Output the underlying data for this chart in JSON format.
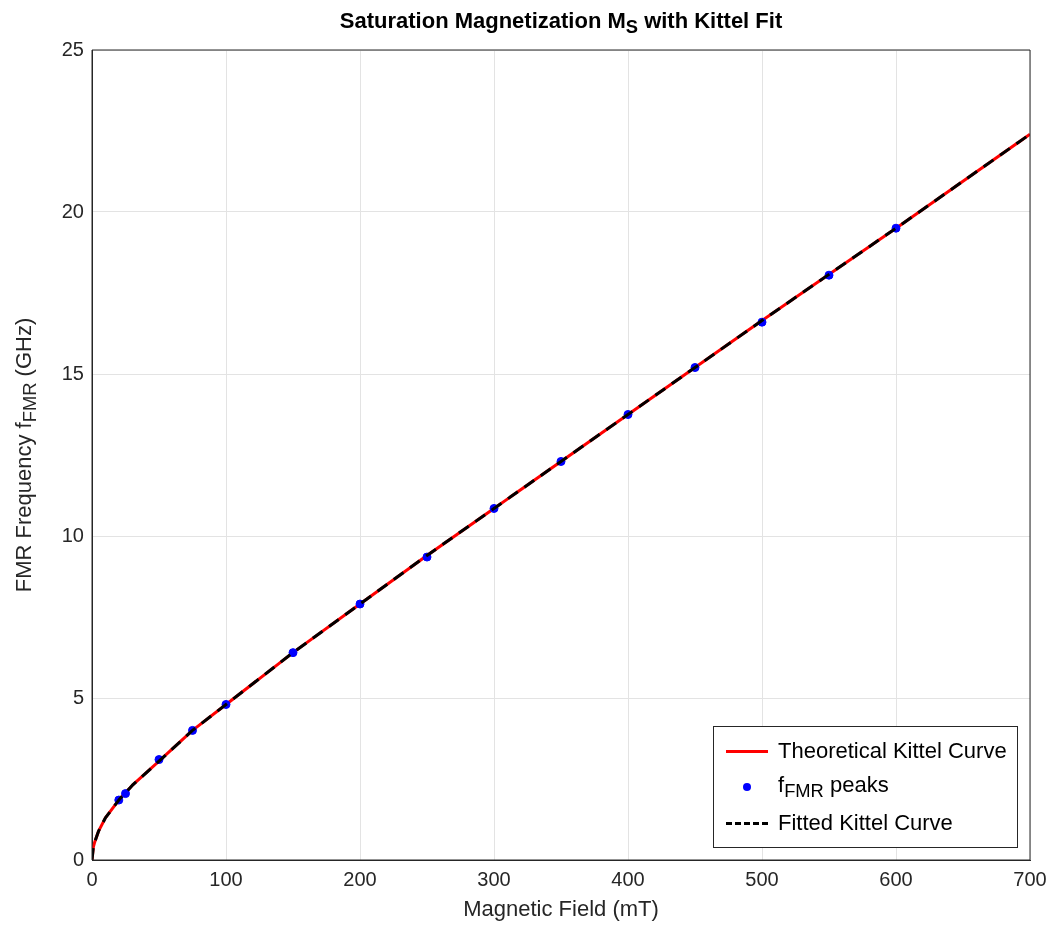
{
  "chart_data": {
    "type": "line",
    "title": "Saturation Magnetization M$_{S}$ with Kittel Fit",
    "xlabel": "Magnetic Field (mT)",
    "ylabel": "FMR Frequency f$_{FMR}$ (GHz)",
    "xlim": [
      0,
      700
    ],
    "xticks": [
      0,
      100,
      200,
      300,
      400,
      500,
      600,
      700
    ],
    "ylim": [
      0,
      25
    ],
    "yticks": [
      0,
      5,
      10,
      15,
      20,
      25
    ],
    "grid": true,
    "legend": "bottom right",
    "series": [
      {
        "name": "Theoretical Kittel Curve",
        "color": "#ff0000",
        "line_style": "solid",
        "marker": "none",
        "x": [
          0,
          1,
          2,
          5,
          10,
          20,
          30,
          50,
          75,
          100,
          150,
          200,
          250,
          300,
          400,
          500,
          600,
          700
        ],
        "values": [
          0,
          0.4,
          0.55,
          0.9,
          1.3,
          1.85,
          2.3,
          3.05,
          4.0,
          4.8,
          6.4,
          7.9,
          9.4,
          10.85,
          13.75,
          16.65,
          19.5,
          22.4
        ]
      },
      {
        "name": "f$_{FMR}$ peaks",
        "type": "scatter",
        "color": "#0000ff",
        "marker": "circle",
        "x": [
          20,
          25,
          50,
          75,
          100,
          150,
          200,
          250,
          300,
          350,
          400,
          450,
          500,
          550,
          600
        ],
        "values": [
          1.85,
          2.05,
          3.1,
          4.0,
          4.8,
          6.4,
          7.9,
          9.35,
          10.85,
          12.3,
          13.75,
          15.2,
          16.6,
          18.05,
          19.5
        ]
      },
      {
        "name": "Fitted Kittel Curve",
        "color": "#000000",
        "line_style": "dashed",
        "marker": "none",
        "x": [
          0,
          1,
          2,
          5,
          10,
          20,
          30,
          50,
          75,
          100,
          150,
          200,
          250,
          300,
          400,
          500,
          600,
          700
        ],
        "values": [
          0,
          0.4,
          0.55,
          0.9,
          1.3,
          1.85,
          2.3,
          3.05,
          4.0,
          4.8,
          6.4,
          7.9,
          9.4,
          10.85,
          13.75,
          16.65,
          19.5,
          22.4
        ]
      }
    ]
  }
}
